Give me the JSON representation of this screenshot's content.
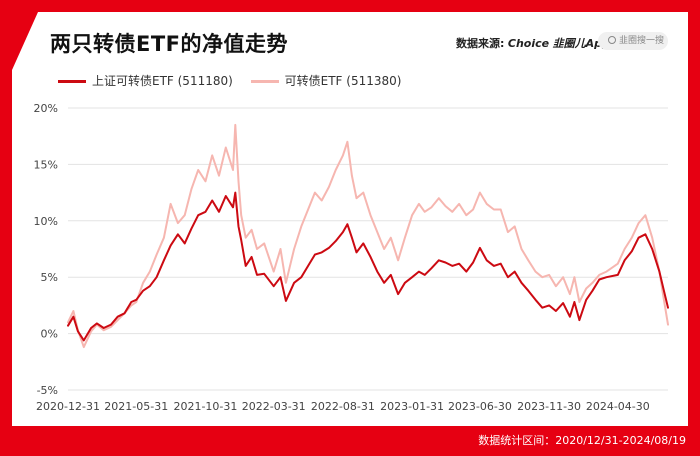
{
  "header": {
    "title": "两只转债ETF的净值走势",
    "source_label": "数据来源:",
    "source_brand": "Choice",
    "source_app": "韭圈儿App",
    "search_placeholder": "韭圈搜一搜"
  },
  "footer": {
    "stat_range": "数据统计区间：2020/12/31-2024/08/19"
  },
  "colors": {
    "frame": "#e60012",
    "series_1": "#cc0a12",
    "series_2": "#f6b6b0"
  },
  "chart_data": {
    "type": "line",
    "title": "两只转债ETF的净值走势",
    "xlabel": "",
    "ylabel": "",
    "x_tick_labels": [
      "2020-12-31",
      "2021-05-31",
      "2021-10-31",
      "2022-03-31",
      "2022-08-31",
      "2023-01-31",
      "2023-06-30",
      "2023-11-30",
      "2024-04-30"
    ],
    "y_tick_labels": [
      "20%",
      "15%",
      "10%",
      "5%",
      "0%",
      "-5%"
    ],
    "y_ticks": [
      20,
      15,
      10,
      5,
      0,
      -5
    ],
    "ylim": [
      -5,
      20
    ],
    "xlim": [
      "2020-12-31",
      "2024-08-19"
    ],
    "grid": "horizontal",
    "legend_position": "top-left",
    "series": [
      {
        "name": "上证可转债ETF (511180)",
        "color": "#cc0a12",
        "points": [
          [
            "2020-12-31",
            0.7
          ],
          [
            "2021-01-12",
            1.5
          ],
          [
            "2021-01-22",
            0.2
          ],
          [
            "2021-02-04",
            -0.6
          ],
          [
            "2021-02-20",
            0.5
          ],
          [
            "2021-03-05",
            0.9
          ],
          [
            "2021-03-20",
            0.5
          ],
          [
            "2021-04-05",
            0.8
          ],
          [
            "2021-04-20",
            1.5
          ],
          [
            "2021-05-05",
            1.8
          ],
          [
            "2021-05-20",
            2.8
          ],
          [
            "2021-05-31",
            3.0
          ],
          [
            "2021-06-15",
            3.8
          ],
          [
            "2021-06-30",
            4.2
          ],
          [
            "2021-07-15",
            5.0
          ],
          [
            "2021-07-31",
            6.5
          ],
          [
            "2021-08-15",
            7.8
          ],
          [
            "2021-08-31",
            8.8
          ],
          [
            "2021-09-15",
            8.0
          ],
          [
            "2021-09-30",
            9.3
          ],
          [
            "2021-10-15",
            10.5
          ],
          [
            "2021-10-31",
            10.8
          ],
          [
            "2021-11-15",
            11.8
          ],
          [
            "2021-11-30",
            10.8
          ],
          [
            "2021-12-15",
            12.2
          ],
          [
            "2021-12-31",
            11.2
          ],
          [
            "2022-01-05",
            12.5
          ],
          [
            "2022-01-12",
            9.5
          ],
          [
            "2022-01-18",
            8.3
          ],
          [
            "2022-01-28",
            6.0
          ],
          [
            "2022-02-10",
            6.8
          ],
          [
            "2022-02-22",
            5.2
          ],
          [
            "2022-03-10",
            5.3
          ],
          [
            "2022-03-31",
            4.2
          ],
          [
            "2022-04-15",
            5.0
          ],
          [
            "2022-04-27",
            2.9
          ],
          [
            "2022-05-15",
            4.5
          ],
          [
            "2022-05-31",
            5.0
          ],
          [
            "2022-06-15",
            6.0
          ],
          [
            "2022-06-30",
            7.0
          ],
          [
            "2022-07-15",
            7.2
          ],
          [
            "2022-07-31",
            7.6
          ],
          [
            "2022-08-15",
            8.2
          ],
          [
            "2022-08-31",
            9.0
          ],
          [
            "2022-09-10",
            9.7
          ],
          [
            "2022-09-20",
            8.5
          ],
          [
            "2022-09-30",
            7.2
          ],
          [
            "2022-10-15",
            8.0
          ],
          [
            "2022-10-31",
            6.8
          ],
          [
            "2022-11-15",
            5.5
          ],
          [
            "2022-11-30",
            4.5
          ],
          [
            "2022-12-15",
            5.2
          ],
          [
            "2022-12-31",
            3.5
          ],
          [
            "2023-01-15",
            4.5
          ],
          [
            "2023-01-31",
            5.0
          ],
          [
            "2023-02-15",
            5.5
          ],
          [
            "2023-02-28",
            5.2
          ],
          [
            "2023-03-15",
            5.8
          ],
          [
            "2023-03-31",
            6.5
          ],
          [
            "2023-04-15",
            6.3
          ],
          [
            "2023-04-30",
            6.0
          ],
          [
            "2023-05-15",
            6.2
          ],
          [
            "2023-05-31",
            5.5
          ],
          [
            "2023-06-15",
            6.3
          ],
          [
            "2023-06-30",
            7.6
          ],
          [
            "2023-07-15",
            6.5
          ],
          [
            "2023-07-31",
            6.0
          ],
          [
            "2023-08-15",
            6.2
          ],
          [
            "2023-08-31",
            5.0
          ],
          [
            "2023-09-15",
            5.5
          ],
          [
            "2023-09-30",
            4.5
          ],
          [
            "2023-10-15",
            3.8
          ],
          [
            "2023-10-31",
            3.0
          ],
          [
            "2023-11-15",
            2.3
          ],
          [
            "2023-11-30",
            2.5
          ],
          [
            "2023-12-15",
            2.0
          ],
          [
            "2023-12-31",
            2.7
          ],
          [
            "2024-01-15",
            1.5
          ],
          [
            "2024-01-25",
            2.8
          ],
          [
            "2024-02-05",
            1.2
          ],
          [
            "2024-02-20",
            3.0
          ],
          [
            "2024-03-05",
            3.8
          ],
          [
            "2024-03-20",
            4.8
          ],
          [
            "2024-04-05",
            5.0
          ],
          [
            "2024-04-30",
            5.2
          ],
          [
            "2024-05-15",
            6.5
          ],
          [
            "2024-05-31",
            7.3
          ],
          [
            "2024-06-15",
            8.5
          ],
          [
            "2024-06-30",
            8.8
          ],
          [
            "2024-07-15",
            7.5
          ],
          [
            "2024-07-31",
            5.5
          ],
          [
            "2024-08-10",
            3.8
          ],
          [
            "2024-08-19",
            2.3
          ]
        ]
      },
      {
        "name": "可转债ETF (511380)",
        "color": "#f6b6b0",
        "points": [
          [
            "2020-12-31",
            1.0
          ],
          [
            "2021-01-12",
            2.0
          ],
          [
            "2021-01-22",
            0.3
          ],
          [
            "2021-02-04",
            -1.2
          ],
          [
            "2021-02-20",
            0.2
          ],
          [
            "2021-03-05",
            0.8
          ],
          [
            "2021-03-20",
            0.3
          ],
          [
            "2021-04-05",
            0.6
          ],
          [
            "2021-04-20",
            1.2
          ],
          [
            "2021-05-05",
            1.8
          ],
          [
            "2021-05-20",
            2.5
          ],
          [
            "2021-05-31",
            2.8
          ],
          [
            "2021-06-15",
            4.5
          ],
          [
            "2021-06-30",
            5.5
          ],
          [
            "2021-07-15",
            7.0
          ],
          [
            "2021-07-31",
            8.5
          ],
          [
            "2021-08-15",
            11.5
          ],
          [
            "2021-08-31",
            9.8
          ],
          [
            "2021-09-15",
            10.5
          ],
          [
            "2021-09-30",
            12.8
          ],
          [
            "2021-10-15",
            14.5
          ],
          [
            "2021-10-31",
            13.5
          ],
          [
            "2021-11-15",
            15.8
          ],
          [
            "2021-11-30",
            14.0
          ],
          [
            "2021-12-15",
            16.5
          ],
          [
            "2021-12-31",
            14.5
          ],
          [
            "2022-01-05",
            18.5
          ],
          [
            "2022-01-12",
            13.5
          ],
          [
            "2022-01-18",
            10.5
          ],
          [
            "2022-01-28",
            8.5
          ],
          [
            "2022-02-10",
            9.2
          ],
          [
            "2022-02-22",
            7.5
          ],
          [
            "2022-03-10",
            8.0
          ],
          [
            "2022-03-31",
            5.5
          ],
          [
            "2022-04-15",
            7.5
          ],
          [
            "2022-04-27",
            4.5
          ],
          [
            "2022-05-15",
            7.5
          ],
          [
            "2022-05-31",
            9.5
          ],
          [
            "2022-06-15",
            11.0
          ],
          [
            "2022-06-30",
            12.5
          ],
          [
            "2022-07-15",
            11.8
          ],
          [
            "2022-07-31",
            13.0
          ],
          [
            "2022-08-15",
            14.5
          ],
          [
            "2022-08-31",
            15.8
          ],
          [
            "2022-09-10",
            17.0
          ],
          [
            "2022-09-20",
            14.0
          ],
          [
            "2022-09-30",
            12.0
          ],
          [
            "2022-10-15",
            12.5
          ],
          [
            "2022-10-31",
            10.5
          ],
          [
            "2022-11-15",
            9.0
          ],
          [
            "2022-11-30",
            7.5
          ],
          [
            "2022-12-15",
            8.5
          ],
          [
            "2022-12-31",
            6.5
          ],
          [
            "2023-01-15",
            8.5
          ],
          [
            "2023-01-31",
            10.5
          ],
          [
            "2023-02-15",
            11.5
          ],
          [
            "2023-02-28",
            10.8
          ],
          [
            "2023-03-15",
            11.2
          ],
          [
            "2023-03-31",
            12.0
          ],
          [
            "2023-04-15",
            11.3
          ],
          [
            "2023-04-30",
            10.8
          ],
          [
            "2023-05-15",
            11.5
          ],
          [
            "2023-05-31",
            10.5
          ],
          [
            "2023-06-15",
            11.0
          ],
          [
            "2023-06-30",
            12.5
          ],
          [
            "2023-07-15",
            11.5
          ],
          [
            "2023-07-31",
            11.0
          ],
          [
            "2023-08-15",
            11.0
          ],
          [
            "2023-08-31",
            9.0
          ],
          [
            "2023-09-15",
            9.5
          ],
          [
            "2023-09-30",
            7.5
          ],
          [
            "2023-10-15",
            6.5
          ],
          [
            "2023-10-31",
            5.5
          ],
          [
            "2023-11-15",
            5.0
          ],
          [
            "2023-11-30",
            5.2
          ],
          [
            "2023-12-15",
            4.2
          ],
          [
            "2023-12-31",
            5.0
          ],
          [
            "2024-01-15",
            3.5
          ],
          [
            "2024-01-25",
            5.0
          ],
          [
            "2024-02-05",
            2.8
          ],
          [
            "2024-02-20",
            4.0
          ],
          [
            "2024-03-05",
            4.5
          ],
          [
            "2024-03-20",
            5.2
          ],
          [
            "2024-04-05",
            5.5
          ],
          [
            "2024-04-30",
            6.2
          ],
          [
            "2024-05-15",
            7.5
          ],
          [
            "2024-05-31",
            8.5
          ],
          [
            "2024-06-15",
            9.8
          ],
          [
            "2024-06-30",
            10.5
          ],
          [
            "2024-07-15",
            8.5
          ],
          [
            "2024-07-31",
            5.5
          ],
          [
            "2024-08-10",
            3.0
          ],
          [
            "2024-08-19",
            0.8
          ]
        ]
      }
    ]
  }
}
